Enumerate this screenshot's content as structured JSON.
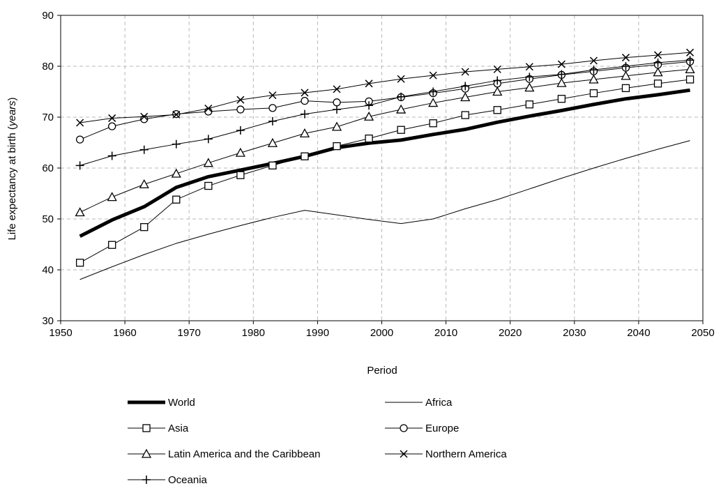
{
  "chart_data": {
    "type": "line",
    "xlabel": "Period",
    "ylabel": "Life expectancy at birth (years)",
    "ylabel_parts": [
      "Life expectancy at birth (",
      "years",
      ")"
    ],
    "xlim": [
      1950,
      2050
    ],
    "ylim": [
      30,
      90
    ],
    "xticks": [
      1950,
      1960,
      1970,
      1980,
      1990,
      2000,
      2010,
      2020,
      2030,
      2040,
      2050
    ],
    "yticks": [
      30,
      40,
      50,
      60,
      70,
      80,
      90
    ],
    "grid": true,
    "legend_position": "bottom",
    "x": [
      1953,
      1958,
      1963,
      1968,
      1973,
      1978,
      1983,
      1988,
      1993,
      1998,
      2003,
      2008,
      2013,
      2018,
      2023,
      2028,
      2033,
      2038,
      2043,
      2048
    ],
    "series": [
      {
        "name": "World",
        "marker": "none",
        "style": "thick",
        "values": [
          46.6,
          49.8,
          52.4,
          56.2,
          58.3,
          59.6,
          60.9,
          62.3,
          64.0,
          64.9,
          65.5,
          66.6,
          67.6,
          69.0,
          70.2,
          71.3,
          72.5,
          73.6,
          74.4,
          75.3
        ]
      },
      {
        "name": "Africa",
        "marker": "none",
        "style": "thin",
        "values": [
          38.1,
          40.6,
          43.0,
          45.2,
          47.0,
          48.7,
          50.3,
          51.7,
          50.8,
          49.9,
          49.1,
          50.0,
          52.0,
          53.8,
          55.9,
          58.0,
          60.0,
          61.9,
          63.7,
          65.4
        ]
      },
      {
        "name": "Asia",
        "marker": "square",
        "style": "marker",
        "values": [
          41.4,
          44.9,
          48.4,
          53.8,
          56.5,
          58.6,
          60.5,
          62.3,
          64.3,
          65.8,
          67.5,
          68.8,
          70.4,
          71.4,
          72.5,
          73.6,
          74.7,
          75.7,
          76.6,
          77.4
        ]
      },
      {
        "name": "Europe",
        "marker": "circle",
        "style": "marker",
        "values": [
          65.6,
          68.2,
          69.6,
          70.6,
          71.1,
          71.5,
          71.8,
          73.2,
          72.9,
          73.1,
          73.9,
          74.7,
          75.6,
          76.6,
          77.5,
          78.3,
          79.0,
          79.7,
          80.3,
          80.9
        ]
      },
      {
        "name": "Latin America and the Caribbean",
        "marker": "triangle",
        "style": "marker",
        "values": [
          51.3,
          54.3,
          56.8,
          58.9,
          61.0,
          63.0,
          64.9,
          66.8,
          68.1,
          70.1,
          71.5,
          72.8,
          73.9,
          75.0,
          75.8,
          76.7,
          77.4,
          78.1,
          78.8,
          79.4
        ]
      },
      {
        "name": "Northern America",
        "marker": "x",
        "style": "marker",
        "values": [
          68.9,
          69.8,
          70.1,
          70.5,
          71.7,
          73.4,
          74.3,
          74.8,
          75.5,
          76.6,
          77.5,
          78.2,
          78.9,
          79.4,
          79.9,
          80.4,
          81.1,
          81.7,
          82.2,
          82.7
        ]
      },
      {
        "name": "Oceania",
        "marker": "plus",
        "style": "marker",
        "values": [
          60.5,
          62.4,
          63.6,
          64.7,
          65.7,
          67.4,
          69.2,
          70.6,
          71.5,
          72.3,
          74.0,
          75.0,
          76.1,
          77.2,
          77.9,
          78.4,
          79.3,
          80.0,
          80.7,
          81.2
        ]
      }
    ],
    "legend_entries": [
      "World",
      "Africa",
      "Asia",
      "Europe",
      "Latin America and the Caribbean",
      "Northern America",
      "Oceania"
    ]
  }
}
